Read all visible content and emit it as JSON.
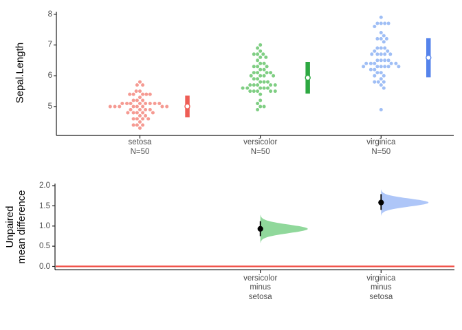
{
  "chart_data": [
    {
      "type": "scatter",
      "subtype": "swarm-with-mean-sd-bars",
      "ylabel": "Sepal.Length",
      "yticks": [
        "5",
        "6",
        "7",
        "8"
      ],
      "ylim": [
        4.0,
        8.1
      ],
      "grid": false,
      "groups": [
        {
          "name": "setosa",
          "n_label": "N=50",
          "n": 50,
          "dot_color": "#F59A92",
          "bar_color": "#EE5D55",
          "mean": 5.006,
          "sd": 0.352,
          "values": [
            5.1,
            4.9,
            4.7,
            4.6,
            5.0,
            5.4,
            4.6,
            5.0,
            4.4,
            4.9,
            5.4,
            4.8,
            4.8,
            4.3,
            5.8,
            5.7,
            5.4,
            5.1,
            5.7,
            5.1,
            5.4,
            5.1,
            4.6,
            5.1,
            4.8,
            5.0,
            5.0,
            5.2,
            5.2,
            4.7,
            4.8,
            5.4,
            5.2,
            5.5,
            4.9,
            5.0,
            5.5,
            4.9,
            4.4,
            5.1,
            5.0,
            4.5,
            4.4,
            5.0,
            5.1,
            4.8,
            5.1,
            4.6,
            5.3,
            5.0
          ]
        },
        {
          "name": "versicolor",
          "n_label": "N=50",
          "n": 50,
          "dot_color": "#7FCE83",
          "bar_color": "#2DA841",
          "mean": 5.936,
          "sd": 0.516,
          "values": [
            7.0,
            6.4,
            6.9,
            5.5,
            6.5,
            5.7,
            6.3,
            4.9,
            6.6,
            5.2,
            5.0,
            5.9,
            6.0,
            6.1,
            5.6,
            6.7,
            5.6,
            5.8,
            6.2,
            5.6,
            5.9,
            6.1,
            6.3,
            6.1,
            6.4,
            6.6,
            6.8,
            6.7,
            6.0,
            5.7,
            5.5,
            5.5,
            5.8,
            6.0,
            5.4,
            6.0,
            6.7,
            6.3,
            5.6,
            5.5,
            5.5,
            6.1,
            5.8,
            5.0,
            5.6,
            5.7,
            5.7,
            6.2,
            5.1,
            5.7
          ]
        },
        {
          "name": "virginica",
          "n_label": "N=50",
          "n": 50,
          "dot_color": "#9FBEF5",
          "bar_color": "#5583EB",
          "mean": 6.588,
          "sd": 0.636,
          "values": [
            6.3,
            5.8,
            7.1,
            6.3,
            6.5,
            7.6,
            4.9,
            7.3,
            6.7,
            7.2,
            6.5,
            6.4,
            6.8,
            5.7,
            5.8,
            6.4,
            6.5,
            7.7,
            7.7,
            6.0,
            6.9,
            5.6,
            7.7,
            6.3,
            6.7,
            7.2,
            6.2,
            6.1,
            6.4,
            7.2,
            7.4,
            7.9,
            6.4,
            6.3,
            6.1,
            7.7,
            6.3,
            6.4,
            6.0,
            6.9,
            6.7,
            6.9,
            5.8,
            6.8,
            6.7,
            6.7,
            6.3,
            6.5,
            6.2,
            5.9
          ]
        }
      ]
    },
    {
      "type": "area",
      "subtype": "bootstrap-halfviolin-mean-difference",
      "ylabel_lines": [
        "Unpaired",
        "mean difference"
      ],
      "yticks": [
        "0.0",
        "0.5",
        "1.0",
        "1.5",
        "2.0"
      ],
      "ylim": [
        -0.09,
        2.05
      ],
      "zero_line_value": 0.0,
      "zero_line_color": "#F04B42",
      "contrasts": [
        {
          "label_lines": [
            "versicolor",
            "minus",
            "setosa"
          ],
          "mean_diff": 0.93,
          "ci_low": 0.75,
          "ci_high": 1.12,
          "se": 0.105,
          "violin_color": "#90D89B"
        },
        {
          "label_lines": [
            "virginica",
            "minus",
            "setosa"
          ],
          "mean_diff": 1.582,
          "ci_low": 1.4,
          "ci_high": 1.79,
          "se": 0.098,
          "violin_color": "#AEC6F8"
        }
      ]
    }
  ]
}
